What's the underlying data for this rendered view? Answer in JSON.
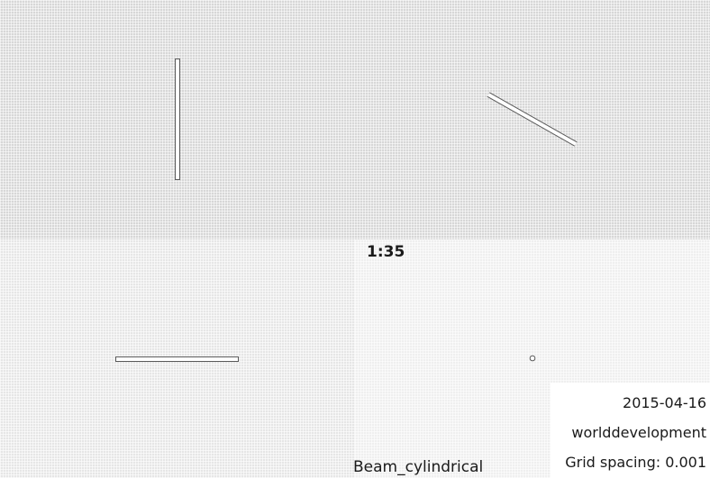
{
  "drawing": {
    "scale": "1:35",
    "part_name": "Beam_cylindrical"
  },
  "title_block": {
    "date": "2015-04-16",
    "project": "worlddevelopment",
    "grid_spacing": "Grid spacing: 0.001"
  },
  "views": [
    "beam-vertical-view",
    "beam-diagonal-view",
    "beam-horizontal-view",
    "beam-end-view"
  ]
}
